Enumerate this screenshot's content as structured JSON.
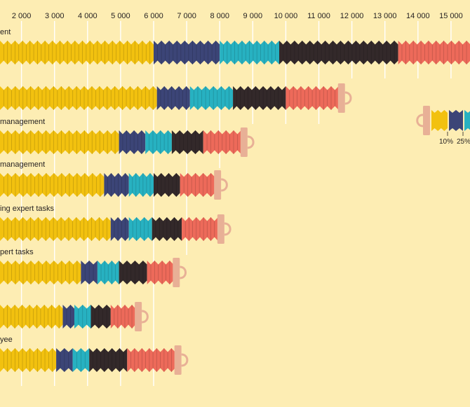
{
  "colors": {
    "background": "#fdedb3",
    "gridline": "#ffffff",
    "decile1": "#f2c10f",
    "decile2": "#3c4577",
    "median": "#27b1c1",
    "decile3": "#33292a",
    "decile4": "#ed6a5a",
    "handle": "#e8b096",
    "text": "#231f20"
  },
  "chart_data": {
    "type": "bar",
    "subtype": "stacked-horizontal-percentile",
    "x_ticks": [
      "2 000",
      "3 000",
      "4 000",
      "5 000",
      "6 000",
      "7 000",
      "8 000",
      "9 000",
      "10 000",
      "11 000",
      "12 000",
      "13 000",
      "14 000",
      "15 000"
    ],
    "xlim": [
      1350,
      15700
    ],
    "grid": true,
    "rows": [
      {
        "label": "ent",
        "d1": 6000,
        "q1": 8000,
        "median": 9800,
        "q3": 13400,
        "d9": 15700,
        "partial": true
      },
      {
        "label": "",
        "d1": 6100,
        "q1": 7100,
        "median": 8400,
        "q3": 10000,
        "d9": 11600
      },
      {
        "label": "management",
        "d1": 4950,
        "q1": 5750,
        "median": 6550,
        "q3": 7500,
        "d9": 8650
      },
      {
        "label": "management",
        "d1": 4500,
        "q1": 5250,
        "median": 6000,
        "q3": 6800,
        "d9": 7850
      },
      {
        "label": "ing expert tasks",
        "d1": 4700,
        "q1": 5250,
        "median": 5950,
        "q3": 6850,
        "d9": 7950
      },
      {
        "label": "pert tasks",
        "d1": 3800,
        "q1": 4300,
        "median": 4950,
        "q3": 5800,
        "d9": 6600
      },
      {
        "label": "",
        "d1": 3250,
        "q1": 3600,
        "median": 4100,
        "q3": 4700,
        "d9": 5450
      },
      {
        "label": "yee",
        "d1": 3050,
        "q1": 3550,
        "median": 4050,
        "q3": 5200,
        "d9": 6650
      }
    ],
    "legend": {
      "labels": [
        "10%",
        "25%"
      ]
    }
  }
}
